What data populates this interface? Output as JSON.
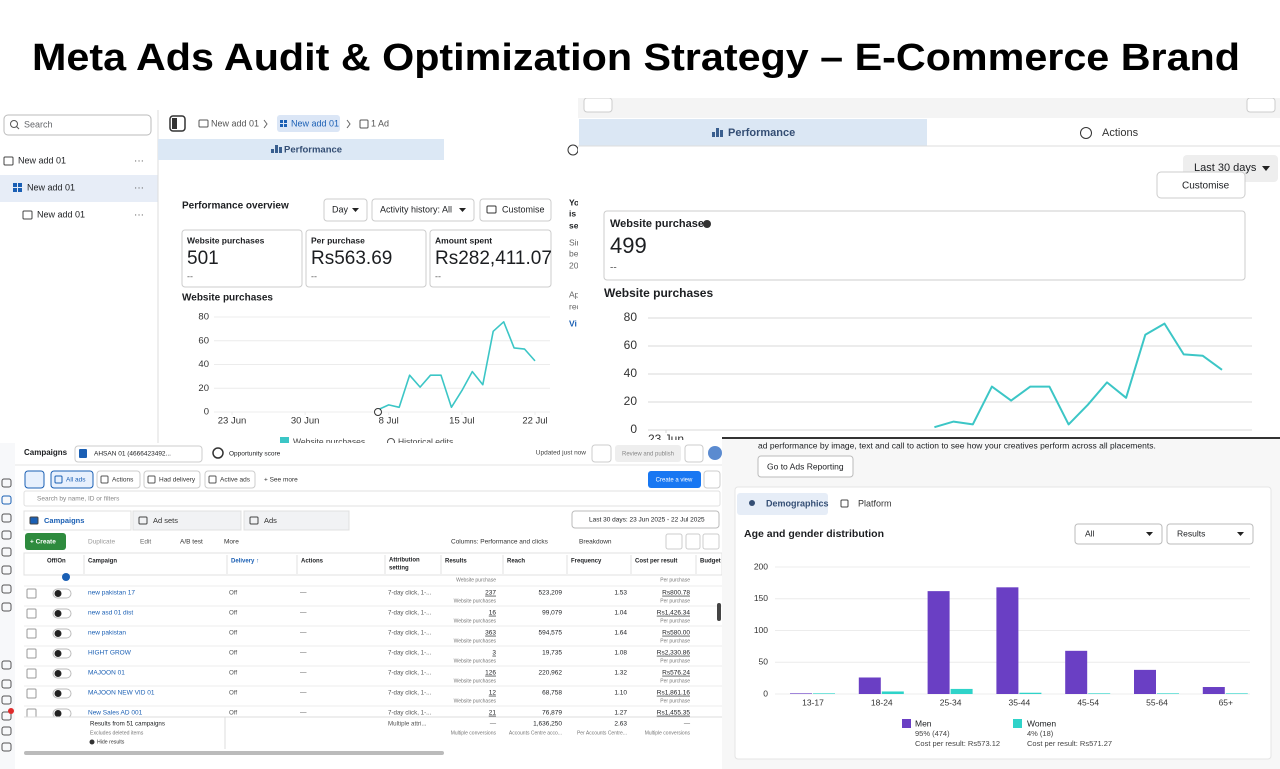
{
  "title": "Meta Ads Audit & Optimization Strategy – E-Commerce Brand",
  "panel_a": {
    "search": "Search",
    "tree": [
      "New add 01",
      "New add 01",
      "New add 01"
    ],
    "breadcrumb": [
      "New add 01",
      "New add 01",
      "1 Ad"
    ],
    "tab": "Performance",
    "heading": "Performance overview",
    "controls": [
      "Day",
      "Activity history: All",
      "Customise"
    ],
    "metrics": [
      {
        "label": "Website purchases",
        "value": "501",
        "sub": "--"
      },
      {
        "label": "Per purchase",
        "value": "Rs563.69",
        "sub": "--"
      },
      {
        "label": "Amount spent",
        "value": "Rs282,411.07",
        "sub": "--"
      }
    ],
    "side_text": [
      "Yo",
      "is",
      "se",
      "Sir",
      "be",
      "20",
      "Ap",
      "rec",
      "Vi"
    ],
    "chart": {
      "type": "line",
      "title": "Website purchases",
      "x": [
        14,
        15,
        16,
        17,
        18,
        19,
        20,
        21,
        22,
        23,
        24,
        25,
        26,
        27,
        28,
        29
      ],
      "series": [
        {
          "name": "Website purchases",
          "color": "#3cc6c6",
          "values": [
            2,
            6,
            4,
            31,
            21,
            31,
            31,
            4,
            18,
            34,
            23,
            68,
            76,
            54,
            53,
            43
          ]
        }
      ],
      "extra_legend": "Historical edits",
      "xlim": [
        0,
        29
      ],
      "xticks": [
        {
          "value": 0,
          "label": "23 Jun"
        },
        {
          "value": 7,
          "label": "30 Jun"
        },
        {
          "value": 15,
          "label": "8 Jul"
        },
        {
          "value": 22,
          "label": "15 Jul"
        },
        {
          "value": 29,
          "label": "22 Jul"
        }
      ],
      "ylim": [
        0,
        80
      ],
      "yticks": [
        0,
        20,
        40,
        60,
        80
      ],
      "grid": true
    }
  },
  "panel_b": {
    "tabs": [
      "Performance",
      "Actions"
    ],
    "range": "Last 30 days",
    "customise": "Customise",
    "metric": {
      "label": "Website purchases",
      "value": "499",
      "sub": "--"
    },
    "chart": {
      "type": "line",
      "title": "Website purchases",
      "x": [
        14,
        15,
        16,
        17,
        18,
        19,
        20,
        21,
        22,
        23,
        24,
        25,
        26,
        27,
        28,
        29
      ],
      "series": [
        {
          "name": "Website purchases",
          "color": "#3cc6c6",
          "values": [
            2,
            6,
            4,
            31,
            21,
            31,
            31,
            4,
            18,
            34,
            23,
            68,
            76,
            54,
            53,
            43
          ]
        }
      ],
      "xlim": [
        0,
        29
      ],
      "xticks": [
        {
          "value": 0,
          "label": "23 Jun"
        }
      ],
      "ylim": [
        0,
        80
      ],
      "yticks": [
        0,
        20,
        40,
        60,
        80
      ],
      "grid": true
    }
  },
  "panel_c": {
    "topbar": [
      "Campaigns",
      "AHSAN 01 (4666423492...",
      "Opportunity score",
      "Updated just now",
      "Review and publish"
    ],
    "filters": [
      "All ads",
      "Actions",
      "Had delivery",
      "Active ads",
      "+ See more",
      "Create a view"
    ],
    "search": "Search by name, ID or filters",
    "tabs": [
      "Campaigns",
      "Ad sets",
      "Ads"
    ],
    "date_range": "Last 30 days: 23 Jun 2025 - 22 Jul 2025",
    "toolbar": [
      "+ Create",
      "Duplicate",
      "Edit",
      "A/B test",
      "More",
      "Columns: Performance and clicks",
      "Breakdown"
    ],
    "header": [
      "Off/On",
      "Campaign",
      "Delivery ↑",
      "Actions",
      [
        "Attribution",
        "setting"
      ],
      "Results",
      "Reach",
      "Frequency",
      "Cost per result",
      "Budget"
    ],
    "partial_row": [
      "Website purchase",
      "Per purchase"
    ],
    "rows": [
      [
        "new pakistan 17",
        "Off",
        "—",
        "7-day click, 1-...",
        "237",
        "Website purchases",
        "523,209",
        "1.53",
        "Rs800.78",
        "Per purchase"
      ],
      [
        "new asd 01 dist",
        "Off",
        "—",
        "7-day click, 1-...",
        "16",
        "Website purchases",
        "99,079",
        "1.04",
        "Rs1,426.34",
        "Per purchase"
      ],
      [
        "new pakistan",
        "Off",
        "—",
        "7-day click, 1-...",
        "363",
        "Website purchases",
        "594,575",
        "1.64",
        "Rs580.00",
        "Per purchase"
      ],
      [
        "HIGHT GROW",
        "Off",
        "—",
        "7-day click, 1-...",
        "3",
        "Website purchases",
        "19,735",
        "1.08",
        "Rs2,330.86",
        "Per purchase"
      ],
      [
        "MAJOON 01",
        "Off",
        "—",
        "7-day click, 1-...",
        "126",
        "Website purchases",
        "220,962",
        "1.32",
        "Rs576.24",
        "Per purchase"
      ],
      [
        "MAJOON NEW VID 01",
        "Off",
        "—",
        "7-day click, 1-...",
        "12",
        "Website purchases",
        "68,758",
        "1.10",
        "Rs1,861.16",
        "Per purchase"
      ],
      [
        "New Sales AD 001",
        "Off",
        "—",
        "7-day click, 1-...",
        "21",
        "Website purchases",
        "76,879",
        "1.27",
        "Rs1,455.35",
        "Per purchase"
      ]
    ],
    "footer": [
      "Results from 51 campaigns",
      "Excludes deleted items",
      "Hide results",
      "Multiple attri...",
      "—",
      "Multiple conversions",
      "1,636,250",
      "Accounts Centre acco...",
      "2.63",
      "Per Accounts Centre...",
      "—",
      "Multiple conversions"
    ]
  },
  "panel_d": {
    "intro": "ad performance by image, text and call to action to see how your creatives perform across all placements.",
    "button": "Go to Ads Reporting",
    "tabs": [
      "Demographics",
      "Platform"
    ],
    "heading": "Age and gender distribution",
    "dropdowns": [
      "All",
      "Results"
    ],
    "chart": {
      "type": "bar",
      "categories": [
        "13-17",
        "18-24",
        "25-34",
        "35-44",
        "45-54",
        "55-64",
        "65+"
      ],
      "series": [
        {
          "name": "Men",
          "color": "#6a3fc4",
          "values": [
            1,
            26,
            162,
            168,
            68,
            38,
            11
          ]
        },
        {
          "name": "Women",
          "color": "#2fd3c9",
          "values": [
            1,
            4,
            8,
            2,
            1,
            1,
            1
          ]
        }
      ],
      "legend_details": [
        [
          "95% (474)",
          "Cost per result: Rs573.12"
        ],
        [
          "4% (18)",
          "Cost per result: Rs571.27"
        ]
      ],
      "ylim": [
        0,
        200
      ],
      "yticks": [
        0,
        50,
        100,
        150,
        200
      ],
      "grid": true
    }
  }
}
